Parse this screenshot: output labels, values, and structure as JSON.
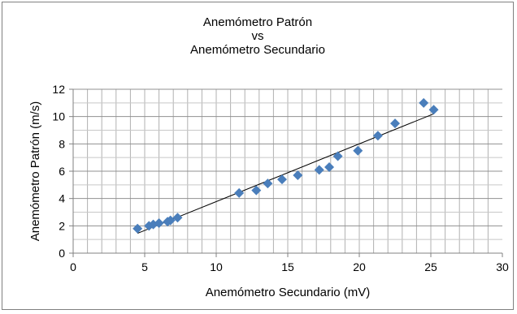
{
  "chart_data": {
    "type": "scatter",
    "title_lines": [
      "Anemómetro Patrón",
      "vs",
      "Anemómetro Secundario"
    ],
    "xlabel": "Anemómetro Secundario (mV)",
    "ylabel": "Anemómetro Patrón (m/s)",
    "xlim": [
      0,
      30
    ],
    "ylim": [
      0,
      12
    ],
    "x_ticks": [
      "0",
      "5",
      "10",
      "15",
      "20",
      "25",
      "30"
    ],
    "y_ticks": [
      "0",
      "2",
      "4",
      "6",
      "8",
      "10",
      "12"
    ],
    "grid": true,
    "legend": "none",
    "marker": "diamond",
    "marker_color": "#4a7ebb",
    "series": [
      {
        "points": [
          [
            4.5,
            1.8
          ],
          [
            5.3,
            2.0
          ],
          [
            5.6,
            2.1
          ],
          [
            6.0,
            2.2
          ],
          [
            6.6,
            2.3
          ],
          [
            6.8,
            2.4
          ],
          [
            7.3,
            2.6
          ],
          [
            11.6,
            4.4
          ],
          [
            12.8,
            4.6
          ],
          [
            13.6,
            5.1
          ],
          [
            14.6,
            5.4
          ],
          [
            15.7,
            5.7
          ],
          [
            17.2,
            6.1
          ],
          [
            17.9,
            6.3
          ],
          [
            18.5,
            7.1
          ],
          [
            19.9,
            7.5
          ],
          [
            21.3,
            8.6
          ],
          [
            22.5,
            9.5
          ],
          [
            24.5,
            11.0
          ],
          [
            25.2,
            10.5
          ]
        ]
      }
    ],
    "trendline": {
      "type": "linear",
      "from": [
        4.5,
        1.45
      ],
      "to": [
        25.2,
        10.2
      ],
      "color": "#000000"
    }
  }
}
